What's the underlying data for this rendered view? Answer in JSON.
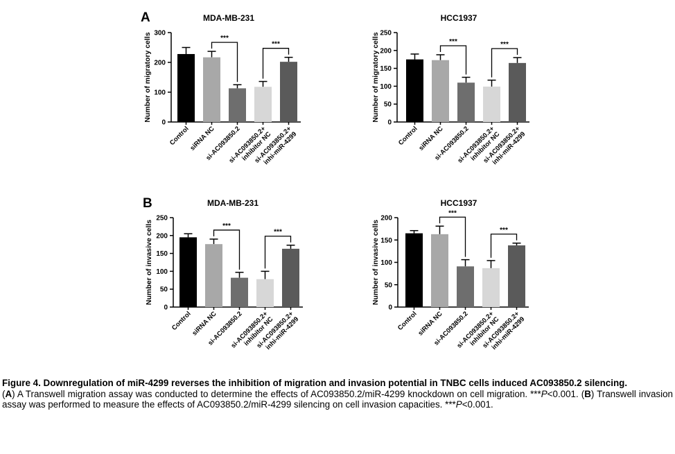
{
  "panel_letters": [
    "A",
    "B"
  ],
  "chart_data": [
    {
      "type": "bar",
      "panel": "A",
      "title": "MDA-MB-231",
      "ylabel": "Number of migratory cells",
      "ylim": [
        0,
        300
      ],
      "yticks": [
        0,
        100,
        200,
        300
      ],
      "categories": [
        "Control",
        "siRNA NC",
        "si-AC093850.2",
        "si-AC093850.2+\ninhibitor NC",
        "si-AC093850.2+\ninhi-miR-4299"
      ],
      "values": [
        228,
        217,
        113,
        118,
        202
      ],
      "errors": [
        22,
        20,
        12,
        18,
        15
      ],
      "colors": [
        "#000000",
        "#a8a8a8",
        "#6e6e6e",
        "#d7d7d7",
        "#5a5a5a"
      ],
      "significance": [
        {
          "from": 1,
          "to": 2,
          "label": "***"
        },
        {
          "from": 3,
          "to": 4,
          "label": "***"
        }
      ]
    },
    {
      "type": "bar",
      "panel": "A",
      "title": "HCC1937",
      "ylabel": "Number of migratory cells",
      "ylim": [
        0,
        250
      ],
      "yticks": [
        0,
        50,
        100,
        150,
        200,
        250
      ],
      "categories": [
        "Control",
        "siRNA NC",
        "si-AC093850.2",
        "si-AC093850.2+\ninhibitor NC",
        "si-AC093850.2+\ninhi-miR-4299"
      ],
      "values": [
        175,
        173,
        110,
        99,
        165
      ],
      "errors": [
        15,
        15,
        15,
        18,
        15
      ],
      "colors": [
        "#000000",
        "#a8a8a8",
        "#6e6e6e",
        "#d7d7d7",
        "#5a5a5a"
      ],
      "significance": [
        {
          "from": 1,
          "to": 2,
          "label": "***"
        },
        {
          "from": 3,
          "to": 4,
          "label": "***"
        }
      ]
    },
    {
      "type": "bar",
      "panel": "B",
      "title": "MDA-MB-231",
      "ylabel": "Number of invasive cells",
      "ylim": [
        0,
        250
      ],
      "yticks": [
        0,
        50,
        100,
        150,
        200,
        250
      ],
      "categories": [
        "Control",
        "siRNA NC",
        "si-AC093850.2",
        "si-AC093850.2+\ninhibitor NC",
        "si-AC093850.2+\ninhi-miR-4299"
      ],
      "values": [
        195,
        176,
        82,
        78,
        163
      ],
      "errors": [
        10,
        14,
        15,
        22,
        10
      ],
      "colors": [
        "#000000",
        "#a8a8a8",
        "#6e6e6e",
        "#d7d7d7",
        "#5a5a5a"
      ],
      "significance": [
        {
          "from": 1,
          "to": 2,
          "label": "***"
        },
        {
          "from": 3,
          "to": 4,
          "label": "***"
        }
      ]
    },
    {
      "type": "bar",
      "panel": "B",
      "title": "HCC1937",
      "ylabel": "Number of invasive cells",
      "ylim": [
        0,
        200
      ],
      "yticks": [
        0,
        50,
        100,
        150,
        200
      ],
      "categories": [
        "Control",
        "siRNA NC",
        "si-AC093850.2",
        "si-AC093850.2+\ninhibitor NC",
        "si-AC093850.2+\ninhi-miR-4299"
      ],
      "values": [
        165,
        163,
        91,
        87,
        138
      ],
      "errors": [
        6,
        18,
        15,
        17,
        5
      ],
      "colors": [
        "#000000",
        "#a8a8a8",
        "#6e6e6e",
        "#d7d7d7",
        "#5a5a5a"
      ],
      "significance": [
        {
          "from": 1,
          "to": 2,
          "label": "***"
        },
        {
          "from": 3,
          "to": 4,
          "label": "***"
        }
      ]
    }
  ],
  "caption": {
    "title": "Figure 4. Downregulation of miR-4299 reverses the inhibition of migration and invasion potential in TNBC cells induced AC093850.2 silencing.",
    "body_a_label": "A",
    "body_a": " A Transwell migration assay was conducted to determine the effects of AC093850.2/miR-4299 knockdown on cell migration. ***",
    "p_symbol": "P",
    "body_a_p": "<0.001. (",
    "body_b_label": "B",
    "body_b": ") Transwell invasion assay was performed to measure the effects of AC093850.2/miR-4299 silencing on cell invasion capacities. ***",
    "body_b_p": "<0.001."
  }
}
